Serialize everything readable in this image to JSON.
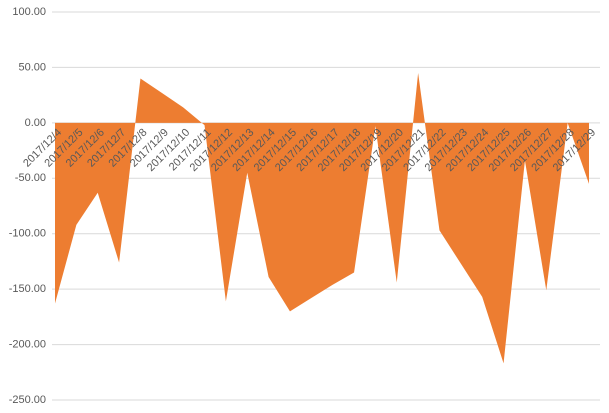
{
  "chart_data": {
    "type": "area",
    "categories": [
      "2017/12/4",
      "2017/12/5",
      "2017/12/6",
      "2017/12/7",
      "2017/12/8",
      "2017/12/9",
      "2017/12/10",
      "2017/12/11",
      "2017/12/12",
      "2017/12/13",
      "2017/12/14",
      "2017/12/15",
      "2017/12/16",
      "2017/12/17",
      "2017/12/18",
      "2017/12/19",
      "2017/12/20",
      "2017/12/21",
      "2017/12/22",
      "2017/12/23",
      "2017/12/24",
      "2017/12/25",
      "2017/12/26",
      "2017/12/27",
      "2017/12/28",
      "2017/12/29"
    ],
    "values": [
      -163,
      -92,
      -63,
      -126,
      40,
      27,
      14,
      -2,
      -161,
      -45,
      -139,
      -170,
      -158,
      -146,
      -135,
      -3,
      -144,
      45,
      -97,
      -127,
      -157,
      -217,
      -34,
      -151,
      0,
      -55
    ],
    "color": "#ed7d31",
    "ylim": [
      -250,
      100
    ],
    "yticks": [
      {
        "value": -250,
        "label": "-250.00"
      },
      {
        "value": -200,
        "label": "-200.00"
      },
      {
        "value": -150,
        "label": "-150.00"
      },
      {
        "value": -100,
        "label": "-100.00"
      },
      {
        "value": -50,
        "label": "-50.00"
      },
      {
        "value": 0,
        "label": "0.00"
      },
      {
        "value": 50,
        "label": "50.00"
      },
      {
        "value": 100,
        "label": "100.00"
      }
    ],
    "grid": true
  }
}
